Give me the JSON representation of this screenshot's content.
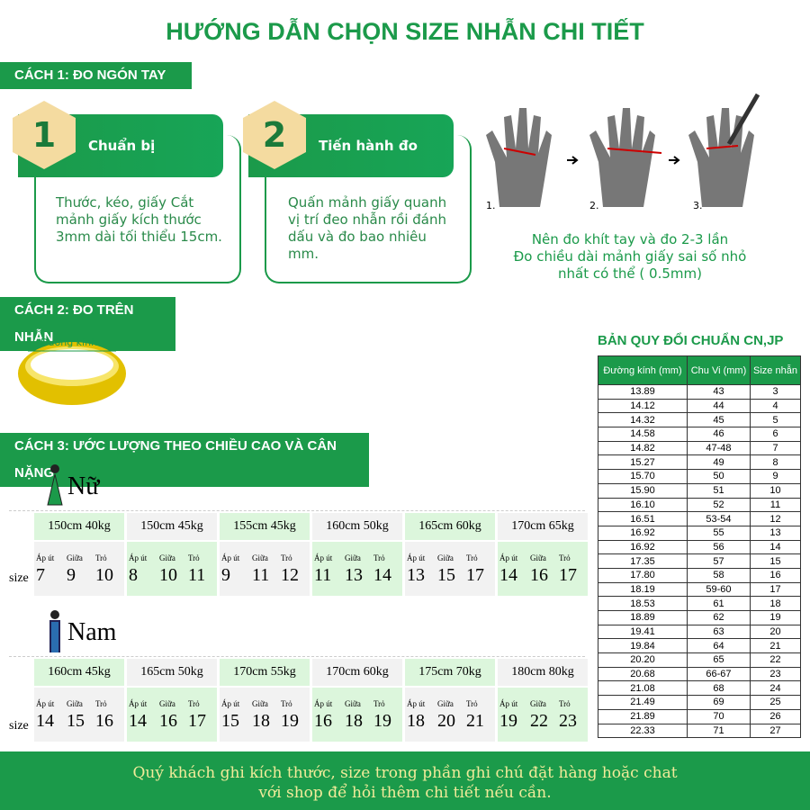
{
  "title": "HƯỚNG DẪN CHỌN SIZE NHẪN CHI TIẾT",
  "method1": {
    "label": "CÁCH 1: ĐO NGÓN TAY",
    "steps": [
      {
        "number": "1",
        "heading": "Chuẩn bị",
        "text": "Thước, kéo, giấy Cắt mảnh giấy kích thước 3mm dài tối thiểu 15cm."
      },
      {
        "number": "2",
        "heading": "Tiến hành đo",
        "text": "Quấn mảnh giấy quanh vị trí đeo nhẫn rồi đánh dấu và đo bao nhiêu mm."
      }
    ],
    "hand_labels": [
      "1.",
      "2.",
      "3."
    ],
    "note": [
      "Nên đo khít tay và đo 2-3 lần",
      "Đo chiều dài mảnh giấy sai số nhỏ",
      "nhất có thể ( 0.5mm)"
    ]
  },
  "method2": {
    "label": "CÁCH 2: ĐO TRÊN NHẪN",
    "ring_label": "Đường kính"
  },
  "method3": {
    "label": "CÁCH 3: ƯỚC LƯỢNG THEO CHIỀU CAO VÀ CÂN NẶNG",
    "finger_labels": [
      "Áp út",
      "Giữa",
      "Trỏ"
    ],
    "size_label": "size",
    "groups": [
      {
        "name": "Nữ",
        "entries": [
          {
            "spec": "150cm  40kg",
            "sizes": [
              "7",
              "9",
              "10"
            ]
          },
          {
            "spec": "150cm  45kg",
            "sizes": [
              "8",
              "10",
              "11"
            ]
          },
          {
            "spec": "155cm  45kg",
            "sizes": [
              "9",
              "11",
              "12"
            ]
          },
          {
            "spec": "160cm  50kg",
            "sizes": [
              "11",
              "13",
              "14"
            ]
          },
          {
            "spec": "165cm  60kg",
            "sizes": [
              "13",
              "15",
              "17"
            ]
          },
          {
            "spec": "170cm  65kg",
            "sizes": [
              "14",
              "16",
              "17"
            ]
          }
        ]
      },
      {
        "name": "Nam",
        "entries": [
          {
            "spec": "160cm  45kg",
            "sizes": [
              "14",
              "15",
              "16"
            ]
          },
          {
            "spec": "165cm  50kg",
            "sizes": [
              "14",
              "16",
              "17"
            ]
          },
          {
            "spec": "170cm  55kg",
            "sizes": [
              "15",
              "18",
              "19"
            ]
          },
          {
            "spec": "170cm  60kg",
            "sizes": [
              "16",
              "18",
              "19"
            ]
          },
          {
            "spec": "175cm  70kg",
            "sizes": [
              "18",
              "20",
              "21"
            ]
          },
          {
            "spec": "180cm  80kg",
            "sizes": [
              "19",
              "22",
              "23"
            ]
          }
        ]
      }
    ]
  },
  "conversion": {
    "title": "BẢN QUY ĐỔI CHUẨN CN,JP",
    "headers": [
      "Đường kính (mm)",
      "Chu Vi (mm)",
      "Size nhẫn"
    ],
    "rows": [
      [
        "13.89",
        "43",
        "3"
      ],
      [
        "14.12",
        "44",
        "4"
      ],
      [
        "14.32",
        "45",
        "5"
      ],
      [
        "14.58",
        "46",
        "6"
      ],
      [
        "14.82",
        "47-48",
        "7"
      ],
      [
        "15.27",
        "49",
        "8"
      ],
      [
        "15.70",
        "50",
        "9"
      ],
      [
        "15.90",
        "51",
        "10"
      ],
      [
        "16.10",
        "52",
        "11"
      ],
      [
        "16.51",
        "53-54",
        "12"
      ],
      [
        "16.92",
        "55",
        "13"
      ],
      [
        "16.92",
        "56",
        "14"
      ],
      [
        "17.35",
        "57",
        "15"
      ],
      [
        "17.80",
        "58",
        "16"
      ],
      [
        "18.19",
        "59-60",
        "17"
      ],
      [
        "18.53",
        "61",
        "18"
      ],
      [
        "18.89",
        "62",
        "19"
      ],
      [
        "19.41",
        "63",
        "20"
      ],
      [
        "19.84",
        "64",
        "21"
      ],
      [
        "20.20",
        "65",
        "22"
      ],
      [
        "20.68",
        "66-67",
        "23"
      ],
      [
        "21.08",
        "68",
        "24"
      ],
      [
        "21.49",
        "69",
        "25"
      ],
      [
        "21.89",
        "70",
        "26"
      ],
      [
        "22.33",
        "71",
        "27"
      ]
    ]
  },
  "footer": [
    "Quý khách ghi kích thước, size trong phần ghi chú đặt hàng hoặc chat",
    "với shop để hỏi thêm chi tiết nếu cần."
  ],
  "colors": {
    "brand_green": "#1b9a4a",
    "highlight_green": "#dcf6dc",
    "footer_text": "#f1eb9a",
    "ring_gold": "#f0d000"
  }
}
